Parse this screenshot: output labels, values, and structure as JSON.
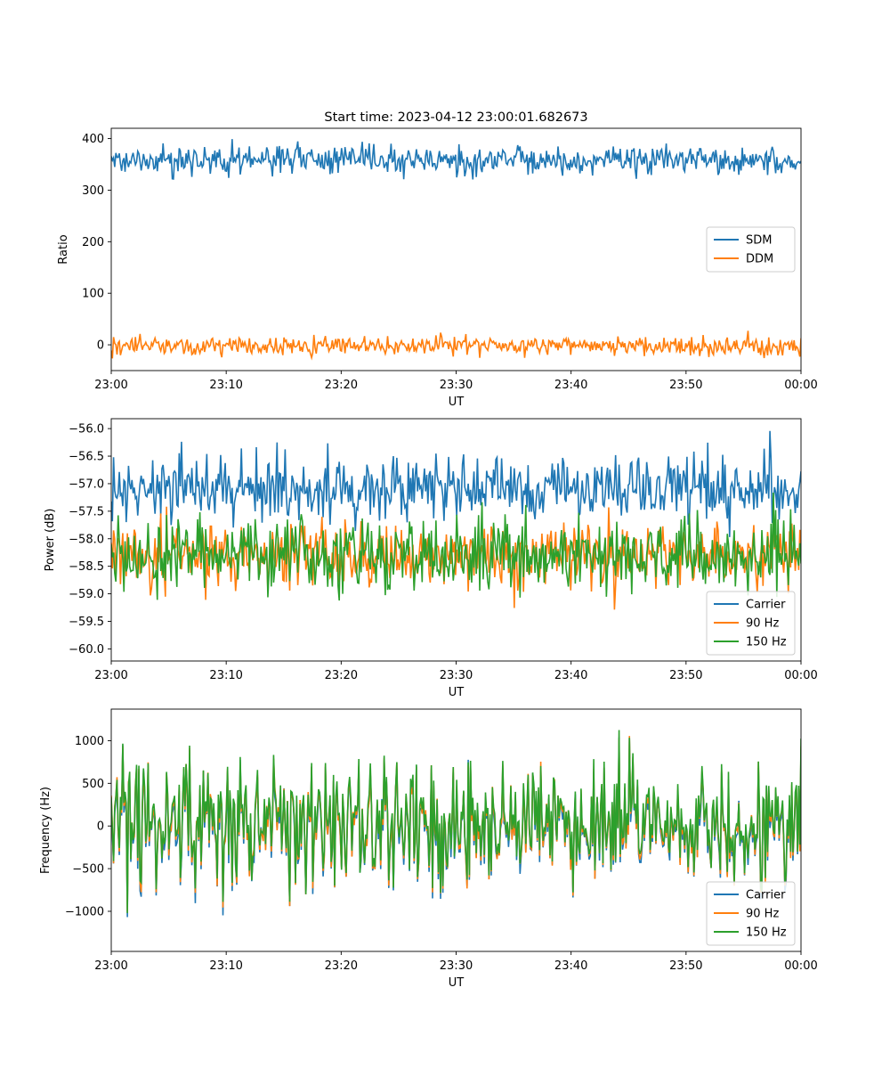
{
  "figure": {
    "title": "Start time: 2023-04-12 23:00:01.682673"
  },
  "chart_data": [
    {
      "type": "line",
      "xlabel": "UT",
      "ylabel": "Ratio",
      "x_range": [
        "23:00",
        "00:00"
      ],
      "xticks": [
        "23:00",
        "23:10",
        "23:20",
        "23:30",
        "23:40",
        "23:50",
        "00:00"
      ],
      "ylim": [
        -50,
        420
      ],
      "yticks": [
        0,
        100,
        200,
        300,
        400
      ],
      "legend": "center-right",
      "series": [
        {
          "name": "SDM",
          "color": "#1f77b4",
          "mean": 358,
          "amplitude": 14
        },
        {
          "name": "DDM",
          "color": "#ff7f0e",
          "mean": -2,
          "amplitude": 9
        }
      ]
    },
    {
      "type": "line",
      "xlabel": "UT",
      "ylabel": "Power (dB)",
      "x_range": [
        "23:00",
        "00:00"
      ],
      "xticks": [
        "23:00",
        "23:10",
        "23:20",
        "23:30",
        "23:40",
        "23:50",
        "00:00"
      ],
      "ylim": [
        -60.22,
        -55.82
      ],
      "yticks": [
        -56.0,
        -56.5,
        -57.0,
        -57.5,
        -58.0,
        -58.5,
        -59.0,
        -59.5,
        -60.0
      ],
      "legend": "bottom-right",
      "series": [
        {
          "name": "Carrier",
          "color": "#1f77b4",
          "mean": -57.1,
          "amplitude": 0.3
        },
        {
          "name": "90 Hz",
          "color": "#ff7f0e",
          "mean": -58.3,
          "amplitude": 0.3
        },
        {
          "name": "150 Hz",
          "color": "#2ca02c",
          "mean": -58.3,
          "amplitude": 0.32
        }
      ]
    },
    {
      "type": "line",
      "xlabel": "UT",
      "ylabel": "Frequency (Hz)",
      "x_range": [
        "23:00",
        "00:00"
      ],
      "xticks": [
        "23:00",
        "23:10",
        "23:20",
        "23:30",
        "23:40",
        "23:50",
        "00:00"
      ],
      "ylim": [
        -1470,
        1370
      ],
      "yticks": [
        1000,
        500,
        0,
        -500,
        -1000
      ],
      "legend": "bottom-right",
      "series": [
        {
          "name": "Carrier",
          "color": "#1f77b4",
          "mean": -20,
          "amplitude": 380
        },
        {
          "name": "90 Hz",
          "color": "#ff7f0e",
          "mean": 10,
          "amplitude": 380
        },
        {
          "name": "150 Hz",
          "color": "#2ca02c",
          "mean": 45,
          "amplitude": 380
        }
      ]
    }
  ]
}
